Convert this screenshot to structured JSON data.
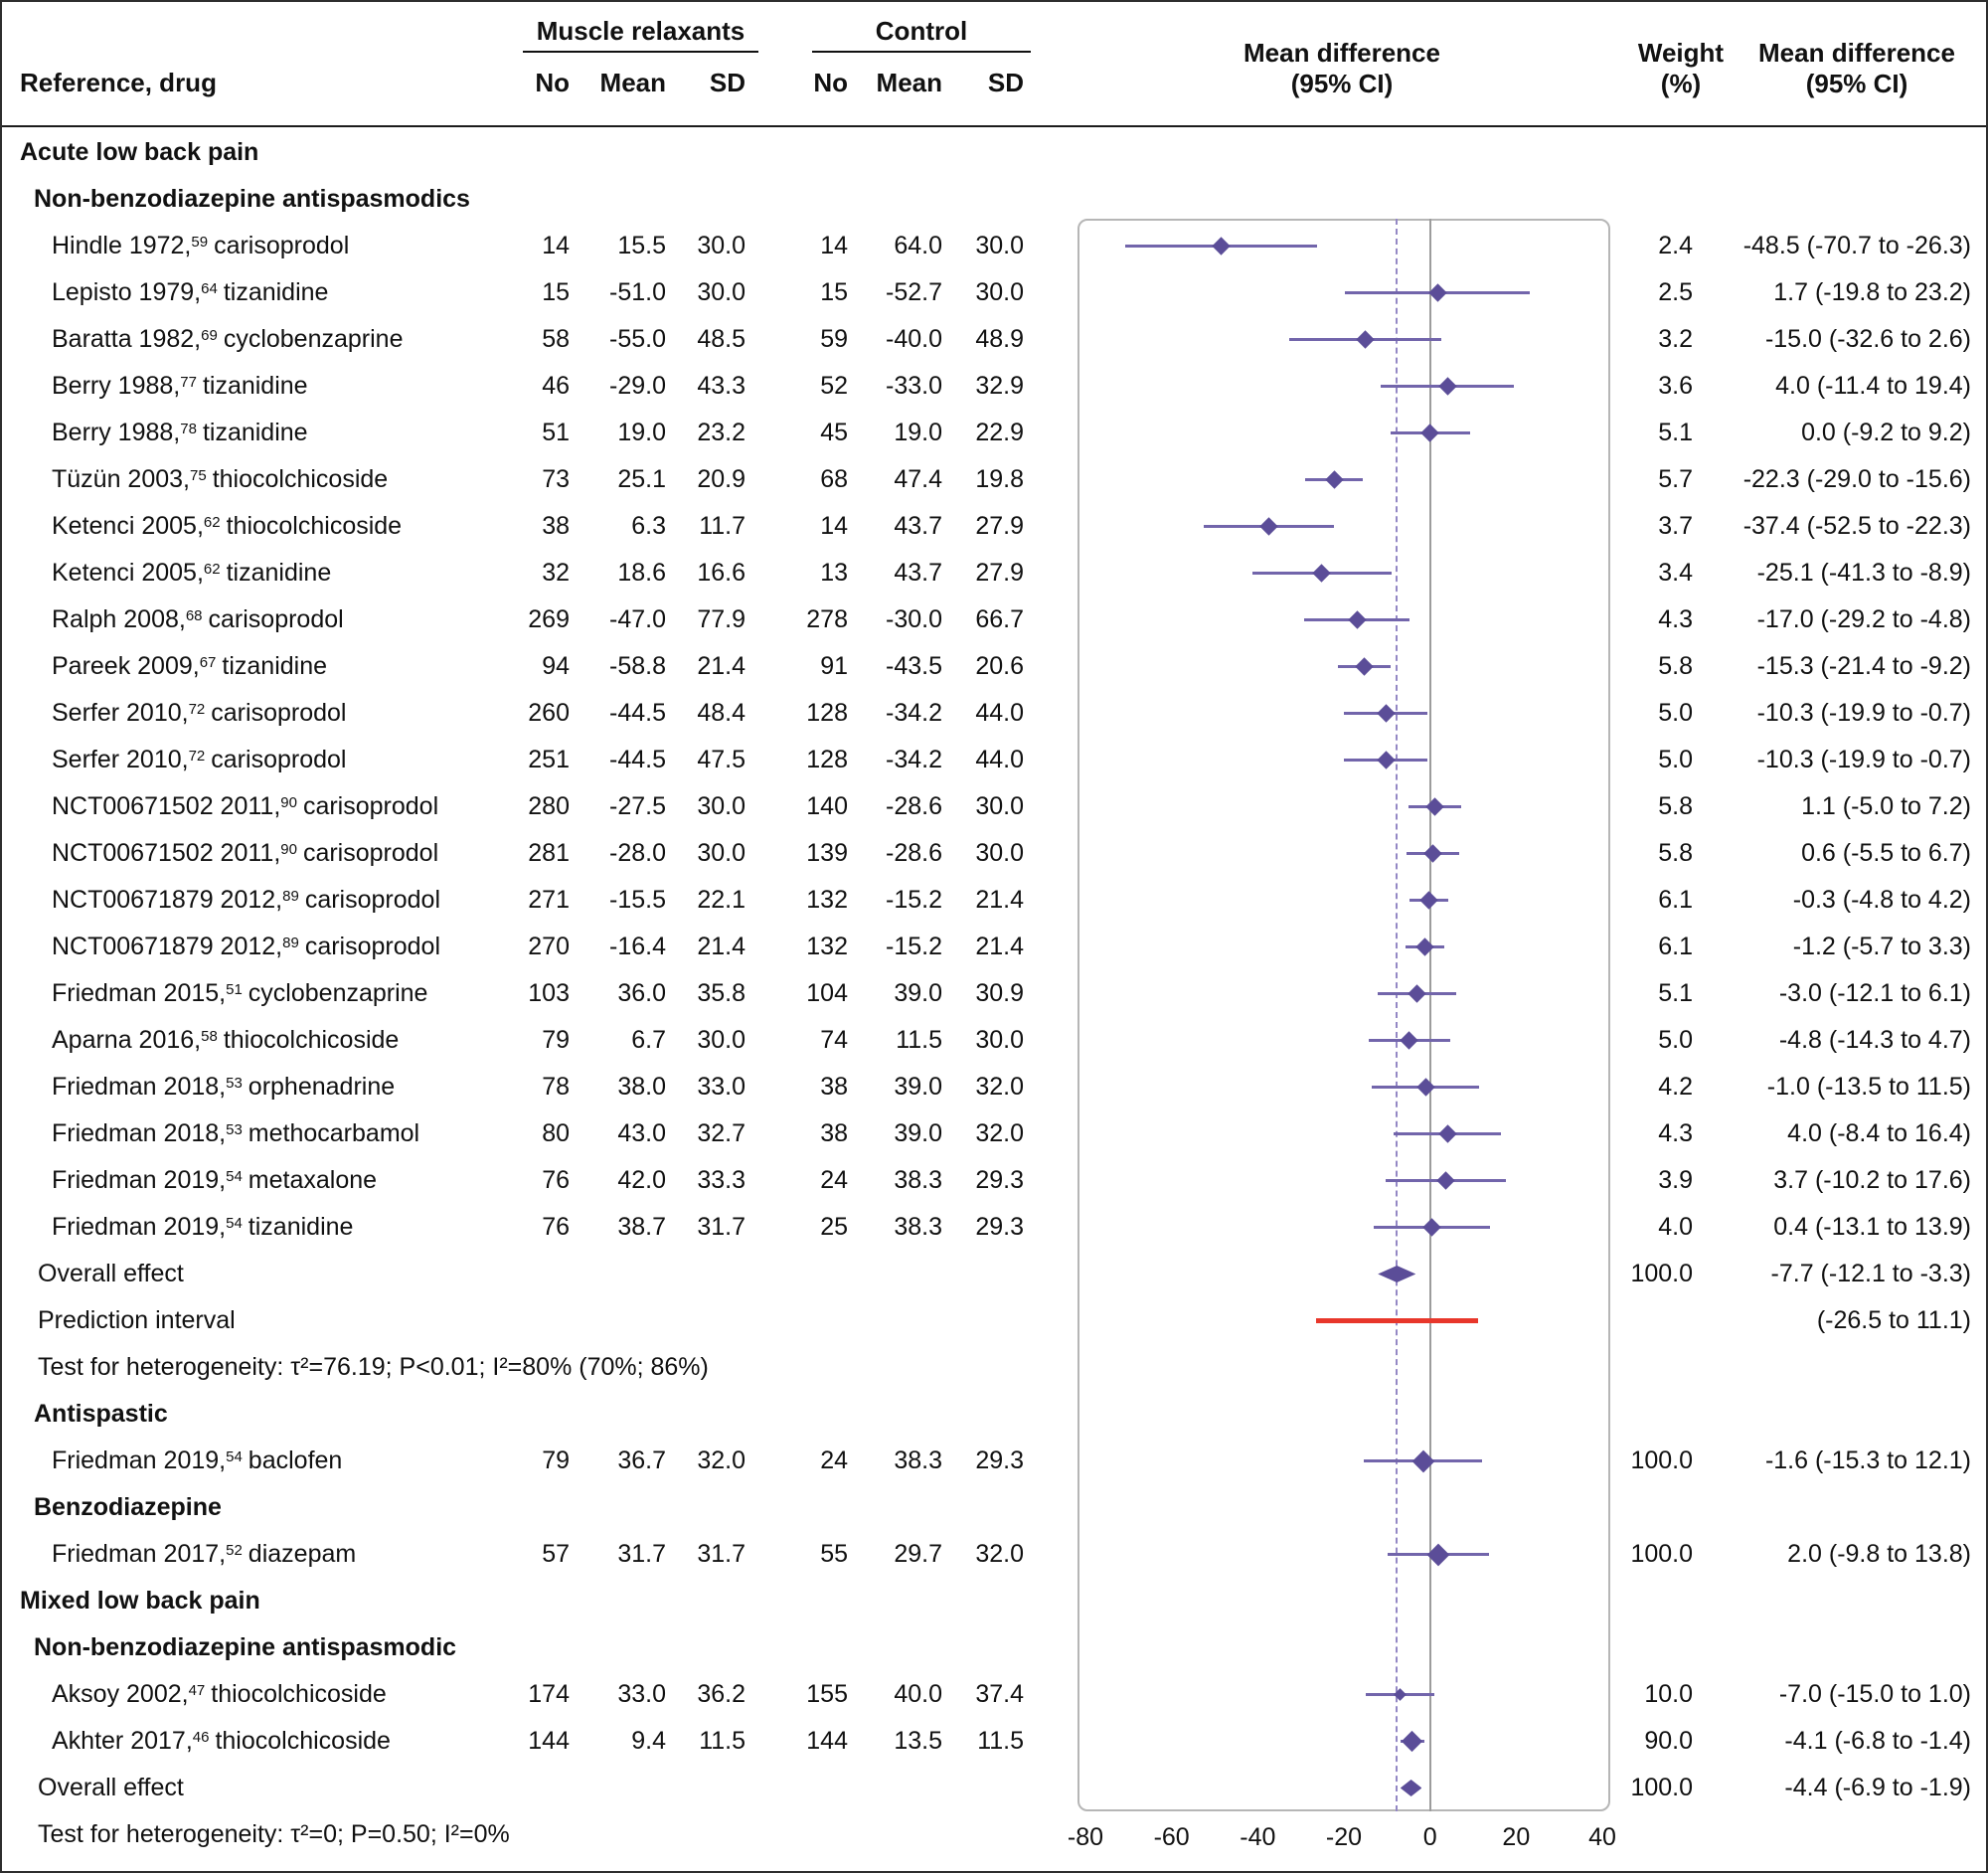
{
  "header": {
    "ref_col": "Reference, drug",
    "group1": "Muscle relaxants",
    "group2": "Control",
    "no": "No",
    "mean": "Mean",
    "sd": "SD",
    "effect_col": [
      "Mean difference",
      "(95% CI)"
    ],
    "weight_col": [
      "Weight",
      "(%)"
    ],
    "md_col": [
      "Mean difference",
      "(95% CI)"
    ]
  },
  "colors": {
    "marker": "#5b4d98",
    "ci_line": "#7265ab",
    "prediction": "#e8372b",
    "zero_line": "#9c9c9c",
    "pooled_dashed": "#9488c5",
    "box_border": "#b6b6b6",
    "text": "#111111",
    "rule": "#1c1c1c"
  },
  "chart_data": {
    "type": "forest",
    "x_axis": {
      "min": -80,
      "max": 40,
      "ticks": [
        -80,
        -60,
        -40,
        -20,
        0,
        20,
        40
      ],
      "zero_line": 0,
      "pooled_dashed_line": -7.7
    },
    "rows": [
      {
        "type": "section",
        "label": "Acute low back pain"
      },
      {
        "type": "subsection",
        "label": "Non-benzodiazepine antispasmodics"
      },
      {
        "type": "study",
        "study": "Hindle 1972,",
        "ref": "59",
        "drug": "carisoprodol",
        "n1": "14",
        "mean1": "15.5",
        "sd1": "30.0",
        "n2": "14",
        "mean2": "64.0",
        "sd2": "30.0",
        "est": -48.5,
        "lo": -70.7,
        "hi": -26.3,
        "weight": "2.4",
        "md": "-48.5 (-70.7 to -26.3)"
      },
      {
        "type": "study",
        "study": "Lepisto 1979,",
        "ref": "64",
        "drug": "tizanidine",
        "n1": "15",
        "mean1": "-51.0",
        "sd1": "30.0",
        "n2": "15",
        "mean2": "-52.7",
        "sd2": "30.0",
        "est": 1.7,
        "lo": -19.8,
        "hi": 23.2,
        "weight": "2.5",
        "md": "1.7 (-19.8 to 23.2)"
      },
      {
        "type": "study",
        "study": "Baratta 1982,",
        "ref": "69",
        "drug": "cyclobenzaprine",
        "n1": "58",
        "mean1": "-55.0",
        "sd1": "48.5",
        "n2": "59",
        "mean2": "-40.0",
        "sd2": "48.9",
        "est": -15.0,
        "lo": -32.6,
        "hi": 2.6,
        "weight": "3.2",
        "md": "-15.0 (-32.6 to 2.6)"
      },
      {
        "type": "study",
        "study": "Berry 1988,",
        "ref": "77",
        "drug": "tizanidine",
        "n1": "46",
        "mean1": "-29.0",
        "sd1": "43.3",
        "n2": "52",
        "mean2": "-33.0",
        "sd2": "32.9",
        "est": 4.0,
        "lo": -11.4,
        "hi": 19.4,
        "weight": "3.6",
        "md": "4.0 (-11.4 to 19.4)"
      },
      {
        "type": "study",
        "study": "Berry 1988,",
        "ref": "78",
        "drug": "tizanidine",
        "n1": "51",
        "mean1": "19.0",
        "sd1": "23.2",
        "n2": "45",
        "mean2": "19.0",
        "sd2": "22.9",
        "est": 0.0,
        "lo": -9.2,
        "hi": 9.2,
        "weight": "5.1",
        "md": "0.0 (-9.2 to 9.2)"
      },
      {
        "type": "study",
        "study": "Tüzün 2003,",
        "ref": "75",
        "drug": "thiocolchicoside",
        "n1": "73",
        "mean1": "25.1",
        "sd1": "20.9",
        "n2": "68",
        "mean2": "47.4",
        "sd2": "19.8",
        "est": -22.3,
        "lo": -29.0,
        "hi": -15.6,
        "weight": "5.7",
        "md": "-22.3 (-29.0 to -15.6)"
      },
      {
        "type": "study",
        "study": "Ketenci 2005,",
        "ref": "62",
        "drug": "thiocolchicoside",
        "n1": "38",
        "mean1": "6.3",
        "sd1": "11.7",
        "n2": "14",
        "mean2": "43.7",
        "sd2": "27.9",
        "est": -37.4,
        "lo": -52.5,
        "hi": -22.3,
        "weight": "3.7",
        "md": "-37.4 (-52.5 to -22.3)"
      },
      {
        "type": "study",
        "study": "Ketenci 2005,",
        "ref": "62",
        "drug": "tizanidine",
        "n1": "32",
        "mean1": "18.6",
        "sd1": "16.6",
        "n2": "13",
        "mean2": "43.7",
        "sd2": "27.9",
        "est": -25.1,
        "lo": -41.3,
        "hi": -8.9,
        "weight": "3.4",
        "md": "-25.1 (-41.3 to -8.9)"
      },
      {
        "type": "study",
        "study": "Ralph 2008,",
        "ref": "68",
        "drug": "carisoprodol",
        "n1": "269",
        "mean1": "-47.0",
        "sd1": "77.9",
        "n2": "278",
        "mean2": "-30.0",
        "sd2": "66.7",
        "est": -17.0,
        "lo": -29.2,
        "hi": -4.8,
        "weight": "4.3",
        "md": "-17.0 (-29.2 to -4.8)"
      },
      {
        "type": "study",
        "study": "Pareek 2009,",
        "ref": "67",
        "drug": "tizanidine",
        "n1": "94",
        "mean1": "-58.8",
        "sd1": "21.4",
        "n2": "91",
        "mean2": "-43.5",
        "sd2": "20.6",
        "est": -15.3,
        "lo": -21.4,
        "hi": -9.2,
        "weight": "5.8",
        "md": "-15.3 (-21.4 to -9.2)"
      },
      {
        "type": "study",
        "study": "Serfer 2010,",
        "ref": "72",
        "drug": "carisoprodol",
        "n1": "260",
        "mean1": "-44.5",
        "sd1": "48.4",
        "n2": "128",
        "mean2": "-34.2",
        "sd2": "44.0",
        "est": -10.3,
        "lo": -19.9,
        "hi": -0.7,
        "weight": "5.0",
        "md": "-10.3 (-19.9 to -0.7)"
      },
      {
        "type": "study",
        "study": "Serfer 2010,",
        "ref": "72",
        "drug": "carisoprodol",
        "n1": "251",
        "mean1": "-44.5",
        "sd1": "47.5",
        "n2": "128",
        "mean2": "-34.2",
        "sd2": "44.0",
        "est": -10.3,
        "lo": -19.9,
        "hi": -0.7,
        "weight": "5.0",
        "md": "-10.3 (-19.9 to -0.7)"
      },
      {
        "type": "study",
        "study": "NCT00671502 2011,",
        "ref": "90",
        "drug": "carisoprodol",
        "n1": "280",
        "mean1": "-27.5",
        "sd1": "30.0",
        "n2": "140",
        "mean2": "-28.6",
        "sd2": "30.0",
        "est": 1.1,
        "lo": -5.0,
        "hi": 7.2,
        "weight": "5.8",
        "md": "1.1 (-5.0 to 7.2)"
      },
      {
        "type": "study",
        "study": "NCT00671502 2011,",
        "ref": "90",
        "drug": "carisoprodol",
        "n1": "281",
        "mean1": "-28.0",
        "sd1": "30.0",
        "n2": "139",
        "mean2": "-28.6",
        "sd2": "30.0",
        "est": 0.6,
        "lo": -5.5,
        "hi": 6.7,
        "weight": "5.8",
        "md": "0.6 (-5.5 to 6.7)"
      },
      {
        "type": "study",
        "study": "NCT00671879 2012,",
        "ref": "89",
        "drug": "carisoprodol",
        "n1": "271",
        "mean1": "-15.5",
        "sd1": "22.1",
        "n2": "132",
        "mean2": "-15.2",
        "sd2": "21.4",
        "est": -0.3,
        "lo": -4.8,
        "hi": 4.2,
        "weight": "6.1",
        "md": "-0.3 (-4.8 to 4.2)"
      },
      {
        "type": "study",
        "study": "NCT00671879 2012,",
        "ref": "89",
        "drug": "carisoprodol",
        "n1": "270",
        "mean1": "-16.4",
        "sd1": "21.4",
        "n2": "132",
        "mean2": "-15.2",
        "sd2": "21.4",
        "est": -1.2,
        "lo": -5.7,
        "hi": 3.3,
        "weight": "6.1",
        "md": "-1.2 (-5.7 to 3.3)"
      },
      {
        "type": "study",
        "study": "Friedman 2015,",
        "ref": "51",
        "drug": "cyclobenzaprine",
        "n1": "103",
        "mean1": "36.0",
        "sd1": "35.8",
        "n2": "104",
        "mean2": "39.0",
        "sd2": "30.9",
        "est": -3.0,
        "lo": -12.1,
        "hi": 6.1,
        "weight": "5.1",
        "md": "-3.0 (-12.1 to 6.1)"
      },
      {
        "type": "study",
        "study": "Aparna 2016,",
        "ref": "58",
        "drug": "thiocolchicoside",
        "n1": "79",
        "mean1": "6.7",
        "sd1": "30.0",
        "n2": "74",
        "mean2": "11.5",
        "sd2": "30.0",
        "est": -4.8,
        "lo": -14.3,
        "hi": 4.7,
        "weight": "5.0",
        "md": "-4.8 (-14.3 to 4.7)"
      },
      {
        "type": "study",
        "study": "Friedman 2018,",
        "ref": "53",
        "drug": "orphenadrine",
        "n1": "78",
        "mean1": "38.0",
        "sd1": "33.0",
        "n2": "38",
        "mean2": "39.0",
        "sd2": "32.0",
        "est": -1.0,
        "lo": -13.5,
        "hi": 11.5,
        "weight": "4.2",
        "md": "-1.0 (-13.5 to 11.5)"
      },
      {
        "type": "study",
        "study": "Friedman 2018,",
        "ref": "53",
        "drug": "methocarbamol",
        "n1": "80",
        "mean1": "43.0",
        "sd1": "32.7",
        "n2": "38",
        "mean2": "39.0",
        "sd2": "32.0",
        "est": 4.0,
        "lo": -8.4,
        "hi": 16.4,
        "weight": "4.3",
        "md": "4.0 (-8.4 to 16.4)"
      },
      {
        "type": "study",
        "study": "Friedman 2019,",
        "ref": "54",
        "drug": "metaxalone",
        "n1": "76",
        "mean1": "42.0",
        "sd1": "33.3",
        "n2": "24",
        "mean2": "38.3",
        "sd2": "29.3",
        "est": 3.7,
        "lo": -10.2,
        "hi": 17.6,
        "weight": "3.9",
        "md": "3.7 (-10.2 to 17.6)"
      },
      {
        "type": "study",
        "study": "Friedman 2019,",
        "ref": "54",
        "drug": "tizanidine",
        "n1": "76",
        "mean1": "38.7",
        "sd1": "31.7",
        "n2": "25",
        "mean2": "38.3",
        "sd2": "29.3",
        "est": 0.4,
        "lo": -13.1,
        "hi": 13.9,
        "weight": "4.0",
        "md": "0.4 (-13.1 to 13.9)"
      },
      {
        "type": "overall",
        "label": "Overall effect",
        "est": -7.7,
        "lo": -12.1,
        "hi": -3.3,
        "weight": "100.0",
        "md": "-7.7 (-12.1 to -3.3)"
      },
      {
        "type": "prediction",
        "label": "Prediction interval",
        "lo": -26.5,
        "hi": 11.1,
        "md": "(-26.5 to 11.1)"
      },
      {
        "type": "note",
        "label": "Test for heterogeneity: τ²=76.19; P<0.01; I²=80% (70%; 86%)"
      },
      {
        "type": "subsection",
        "label": "Antispastic"
      },
      {
        "type": "study",
        "study": "Friedman 2019,",
        "ref": "54",
        "drug": "baclofen",
        "n1": "79",
        "mean1": "36.7",
        "sd1": "32.0",
        "n2": "24",
        "mean2": "38.3",
        "sd2": "29.3",
        "est": -1.6,
        "lo": -15.3,
        "hi": 12.1,
        "weight": "100.0",
        "md": "-1.6 (-15.3 to 12.1)",
        "ms": 16
      },
      {
        "type": "subsection",
        "label": "Benzodiazepine"
      },
      {
        "type": "study",
        "study": "Friedman 2017,",
        "ref": "52",
        "drug": "diazepam",
        "n1": "57",
        "mean1": "31.7",
        "sd1": "31.7",
        "n2": "55",
        "mean2": "29.7",
        "sd2": "32.0",
        "est": 2.0,
        "lo": -9.8,
        "hi": 13.8,
        "weight": "100.0",
        "md": "2.0 (-9.8 to 13.8)",
        "ms": 16
      },
      {
        "type": "section",
        "label": "Mixed low back pain"
      },
      {
        "type": "subsection",
        "label": "Non-benzodiazepine antispasmodic"
      },
      {
        "type": "study",
        "study": "Aksoy 2002,",
        "ref": "47",
        "drug": "thiocolchicoside",
        "n1": "174",
        "mean1": "33.0",
        "sd1": "36.2",
        "n2": "155",
        "mean2": "40.0",
        "sd2": "37.4",
        "est": -7.0,
        "lo": -15.0,
        "hi": 1.0,
        "weight": "10.0",
        "md": "-7.0 (-15.0 to 1.0)",
        "ms": 9
      },
      {
        "type": "study",
        "study": "Akhter 2017,",
        "ref": "46",
        "drug": "thiocolchicoside",
        "n1": "144",
        "mean1": "9.4",
        "sd1": "11.5",
        "n2": "144",
        "mean2": "13.5",
        "sd2": "11.5",
        "est": -4.1,
        "lo": -6.8,
        "hi": -1.4,
        "weight": "90.0",
        "md": "-4.1 (-6.8 to -1.4)",
        "ms": 15
      },
      {
        "type": "overall",
        "label": "Overall effect",
        "est": -4.4,
        "lo": -6.9,
        "hi": -1.9,
        "weight": "100.0",
        "md": "-4.4 (-6.9 to -1.9)"
      },
      {
        "type": "note",
        "label": "Test for heterogeneity: τ²=0; P=0.50; I²=0%"
      }
    ]
  }
}
